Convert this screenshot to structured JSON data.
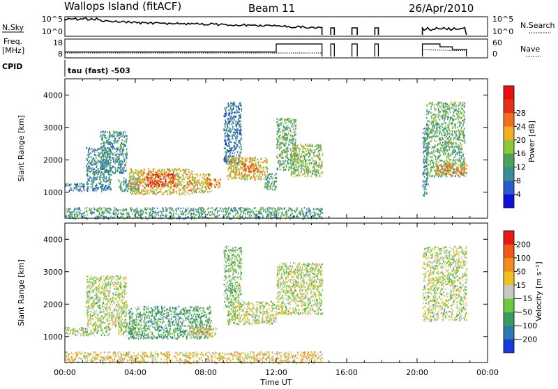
{
  "header": {
    "site": "Wallops Island (fitACF)",
    "beam": "Beam 11",
    "date": "26/Apr/2010"
  },
  "nsky_panel": {
    "left_label": "N.Sky",
    "left_ticks": [
      "10^5",
      "10^0"
    ],
    "right_label": "N.Search",
    "right_ticks": [
      "10^5",
      "10^0"
    ]
  },
  "freq_panel": {
    "left_label_1": "Freq.",
    "left_label_2": "[MHz]",
    "left_ticks": [
      "18",
      "8"
    ],
    "right_label": "Nave",
    "right_ticks": [
      "60",
      "0"
    ]
  },
  "cpid": {
    "label": "CPID",
    "value": "tau (fast) -503"
  },
  "chart_data": [
    {
      "type": "heatmap",
      "quantity": "Power",
      "ylabel": "Slant Range [km]",
      "yticks": [
        1000,
        2000,
        3000,
        4000
      ],
      "ylim": [
        200,
        4500
      ],
      "xlim_hours": [
        0,
        24
      ],
      "colorbar": {
        "label": "Power [dB]",
        "ticks": [
          "4",
          "8",
          "12",
          "16",
          "20",
          "24",
          "28"
        ],
        "colors": [
          "#1010d8",
          "#2a5cd0",
          "#3a8e9a",
          "#4ca25a",
          "#8ac83c",
          "#f0b020",
          "#f07020",
          "#e83018",
          "#e81010"
        ]
      },
      "regions": [
        {
          "t": [
            0.0,
            2.6
          ],
          "r": [
            1050,
            1300
          ],
          "level": 0.25
        },
        {
          "t": [
            1.2,
            2.6
          ],
          "r": [
            1300,
            2400
          ],
          "level": 0.3
        },
        {
          "t": [
            2.0,
            3.5
          ],
          "r": [
            1600,
            2900
          ],
          "level": 0.3
        },
        {
          "t": [
            3.0,
            4.2
          ],
          "r": [
            1050,
            1500
          ],
          "level": 0.35
        },
        {
          "t": [
            3.6,
            7.2
          ],
          "r": [
            950,
            1750
          ],
          "level": 0.6
        },
        {
          "t": [
            4.6,
            6.2
          ],
          "r": [
            1200,
            1600
          ],
          "level": 0.82
        },
        {
          "t": [
            7.2,
            8.3
          ],
          "r": [
            1000,
            1600
          ],
          "level": 0.55
        },
        {
          "t": [
            8.0,
            8.8
          ],
          "r": [
            1150,
            1450
          ],
          "level": 0.7
        },
        {
          "t": [
            9.0,
            10.0
          ],
          "r": [
            1900,
            3800
          ],
          "level": 0.25
        },
        {
          "t": [
            9.2,
            11.5
          ],
          "r": [
            1400,
            2100
          ],
          "level": 0.6
        },
        {
          "t": [
            10.0,
            11.0
          ],
          "r": [
            1650,
            1900
          ],
          "level": 0.72
        },
        {
          "t": [
            11.3,
            12.0
          ],
          "r": [
            1100,
            1600
          ],
          "level": 0.35
        },
        {
          "t": [
            12.0,
            13.1
          ],
          "r": [
            1700,
            3300
          ],
          "level": 0.4
        },
        {
          "t": [
            12.8,
            14.6
          ],
          "r": [
            1500,
            2500
          ],
          "level": 0.45
        },
        {
          "t": [
            20.3,
            20.6
          ],
          "r": [
            900,
            3000
          ],
          "level": 0.3
        },
        {
          "t": [
            20.5,
            22.7
          ],
          "r": [
            1500,
            3800
          ],
          "level": 0.4
        },
        {
          "t": [
            21.0,
            22.8
          ],
          "r": [
            1550,
            1900
          ],
          "level": 0.66
        },
        {
          "t": [
            0.0,
            14.6
          ],
          "r": [
            200,
            550
          ],
          "level": 0.35
        }
      ]
    },
    {
      "type": "heatmap",
      "quantity": "Velocity",
      "ylabel": "Slant Range [km]",
      "xlabel": "Time UT",
      "xticks": [
        "00:00",
        "04:00",
        "08:00",
        "12:00",
        "16:00",
        "20:00",
        "00:00"
      ],
      "yticks": [
        1000,
        2000,
        3000,
        4000
      ],
      "ylim": [
        200,
        4500
      ],
      "xlim_hours": [
        0,
        24
      ],
      "colorbar": {
        "label": "Velocity [m s⁻¹]",
        "ticks": [
          "200",
          "100",
          "50",
          "15",
          "−15",
          "−50",
          "−100",
          "−200"
        ],
        "colors": [
          "#1a3ad8",
          "#2a7ab0",
          "#3a9a64",
          "#6cc83c",
          "#c8c8c4",
          "#f0c020",
          "#f08c20",
          "#f05a18",
          "#e81818"
        ]
      },
      "regions": [
        {
          "t": [
            0.0,
            2.6
          ],
          "r": [
            1050,
            1300
          ],
          "level": 0.45
        },
        {
          "t": [
            1.2,
            3.5
          ],
          "r": [
            1300,
            2900
          ],
          "level": 0.48
        },
        {
          "t": [
            3.0,
            4.2
          ],
          "r": [
            1050,
            1500
          ],
          "level": 0.45
        },
        {
          "t": [
            3.6,
            8.3
          ],
          "r": [
            950,
            1950
          ],
          "level": 0.33
        },
        {
          "t": [
            7.0,
            8.6
          ],
          "r": [
            1000,
            1300
          ],
          "level": 0.55
        },
        {
          "t": [
            9.0,
            10.0
          ],
          "r": [
            1900,
            3800
          ],
          "level": 0.4
        },
        {
          "t": [
            9.2,
            12.0
          ],
          "r": [
            1400,
            2100
          ],
          "level": 0.48
        },
        {
          "t": [
            12.0,
            14.6
          ],
          "r": [
            1700,
            3300
          ],
          "level": 0.48
        },
        {
          "t": [
            20.3,
            22.8
          ],
          "r": [
            1500,
            3800
          ],
          "level": 0.48
        },
        {
          "t": [
            0.0,
            14.6
          ],
          "r": [
            200,
            550
          ],
          "level": 0.58
        }
      ]
    }
  ]
}
